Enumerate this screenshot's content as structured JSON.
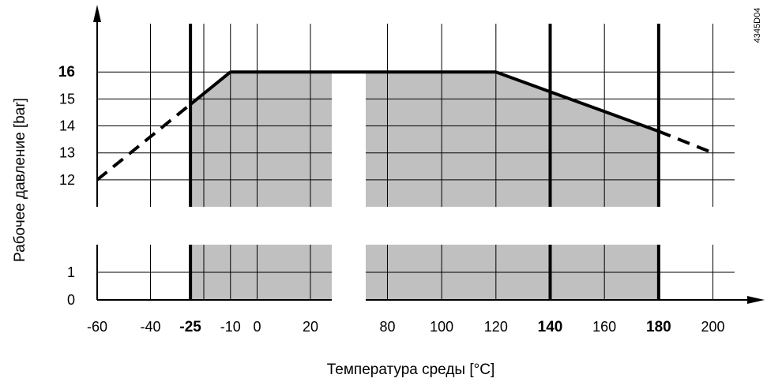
{
  "chart_data": {
    "type": "area",
    "xlabel": "Температура среды [°C]",
    "ylabel": "Рабочее давление [bar]",
    "figure_code": "4345D04",
    "xlim": [
      -60,
      200
    ],
    "x_break": [
      28,
      72
    ],
    "y_break": [
      2,
      11
    ],
    "x_tick_labels": [
      {
        "value": -60,
        "label": "-60",
        "bold": false
      },
      {
        "value": -40,
        "label": "-40",
        "bold": false
      },
      {
        "value": -25,
        "label": "-25",
        "bold": true
      },
      {
        "value": -10,
        "label": "-10",
        "bold": false
      },
      {
        "value": 0,
        "label": "0",
        "bold": false
      },
      {
        "value": 20,
        "label": "20",
        "bold": false
      },
      {
        "value": 80,
        "label": "80",
        "bold": false
      },
      {
        "value": 100,
        "label": "100",
        "bold": false
      },
      {
        "value": 120,
        "label": "120",
        "bold": false
      },
      {
        "value": 140,
        "label": "140",
        "bold": true
      },
      {
        "value": 160,
        "label": "160",
        "bold": false
      },
      {
        "value": 180,
        "label": "180",
        "bold": true
      },
      {
        "value": 200,
        "label": "200",
        "bold": false
      }
    ],
    "y_tick_labels": [
      {
        "value": 0,
        "label": "0",
        "bold": false
      },
      {
        "value": 1,
        "label": "1",
        "bold": false
      },
      {
        "value": 12,
        "label": "12",
        "bold": false
      },
      {
        "value": 13,
        "label": "13",
        "bold": false
      },
      {
        "value": 14,
        "label": "14",
        "bold": false
      },
      {
        "value": 15,
        "label": "15",
        "bold": false
      },
      {
        "value": 16,
        "label": "16",
        "bold": true
      }
    ],
    "x_grid": [
      -60,
      -40,
      -25,
      -20,
      -10,
      0,
      20,
      80,
      100,
      120,
      140,
      160,
      180,
      200
    ],
    "x_grid_bold": [
      -25,
      140,
      180
    ],
    "grid": true,
    "permitted_area": {
      "x_range": [
        -25,
        180
      ],
      "fill_color": "#c0c0c0",
      "boundary": [
        {
          "x": -25,
          "y": 14.8
        },
        {
          "x": -10,
          "y": 16
        },
        {
          "x": 120,
          "y": 16
        },
        {
          "x": 180,
          "y": 13.8
        }
      ]
    },
    "series": [
      {
        "style": "solid",
        "points": [
          {
            "x": -25,
            "y": 14.8
          },
          {
            "x": -10,
            "y": 16
          },
          {
            "x": 120,
            "y": 16
          },
          {
            "x": 180,
            "y": 13.8
          }
        ]
      },
      {
        "style": "dashed",
        "points": [
          {
            "x": -60,
            "y": 12
          },
          {
            "x": -25,
            "y": 14.8
          }
        ]
      },
      {
        "style": "dashed",
        "points": [
          {
            "x": 180,
            "y": 13.8
          },
          {
            "x": 200,
            "y": 13
          }
        ]
      }
    ]
  }
}
